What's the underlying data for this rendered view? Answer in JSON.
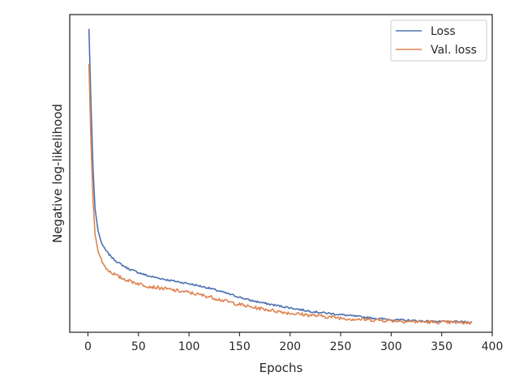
{
  "chart_data": {
    "type": "line",
    "xlabel": "Epochs",
    "ylabel": "Negative log-likelihood",
    "xlim": [
      -18,
      400
    ],
    "ylim": [
      0,
      1
    ],
    "y_tick_labels_shown": false,
    "xticks": [
      0,
      50,
      100,
      150,
      200,
      250,
      300,
      350,
      400
    ],
    "grid": false,
    "legend": {
      "position": "top-right"
    },
    "series": [
      {
        "name": "Loss",
        "color": "#4c72b0",
        "x": [
          1,
          3,
          5,
          7,
          10,
          13,
          16,
          20,
          25,
          30,
          40,
          50,
          60,
          80,
          100,
          120,
          140,
          160,
          180,
          200,
          220,
          240,
          260,
          280,
          300,
          320,
          340,
          360,
          380
        ],
        "y": [
          0.955,
          0.72,
          0.52,
          0.39,
          0.32,
          0.285,
          0.265,
          0.248,
          0.232,
          0.219,
          0.2,
          0.188,
          0.177,
          0.164,
          0.153,
          0.139,
          0.12,
          0.101,
          0.088,
          0.077,
          0.066,
          0.059,
          0.052,
          0.045,
          0.04,
          0.037,
          0.034,
          0.033,
          0.032
        ]
      },
      {
        "name": "Val. loss",
        "color": "#dd8452",
        "x": [
          1,
          3,
          5,
          7,
          10,
          13,
          16,
          20,
          25,
          30,
          40,
          50,
          60,
          80,
          100,
          120,
          140,
          160,
          180,
          200,
          220,
          240,
          260,
          280,
          300,
          320,
          340,
          360,
          380
        ],
        "y": [
          0.845,
          0.6,
          0.42,
          0.31,
          0.255,
          0.23,
          0.21,
          0.195,
          0.185,
          0.175,
          0.163,
          0.153,
          0.145,
          0.135,
          0.125,
          0.112,
          0.095,
          0.08,
          0.07,
          0.06,
          0.054,
          0.048,
          0.042,
          0.039,
          0.037,
          0.034,
          0.032,
          0.031,
          0.03
        ]
      }
    ]
  }
}
